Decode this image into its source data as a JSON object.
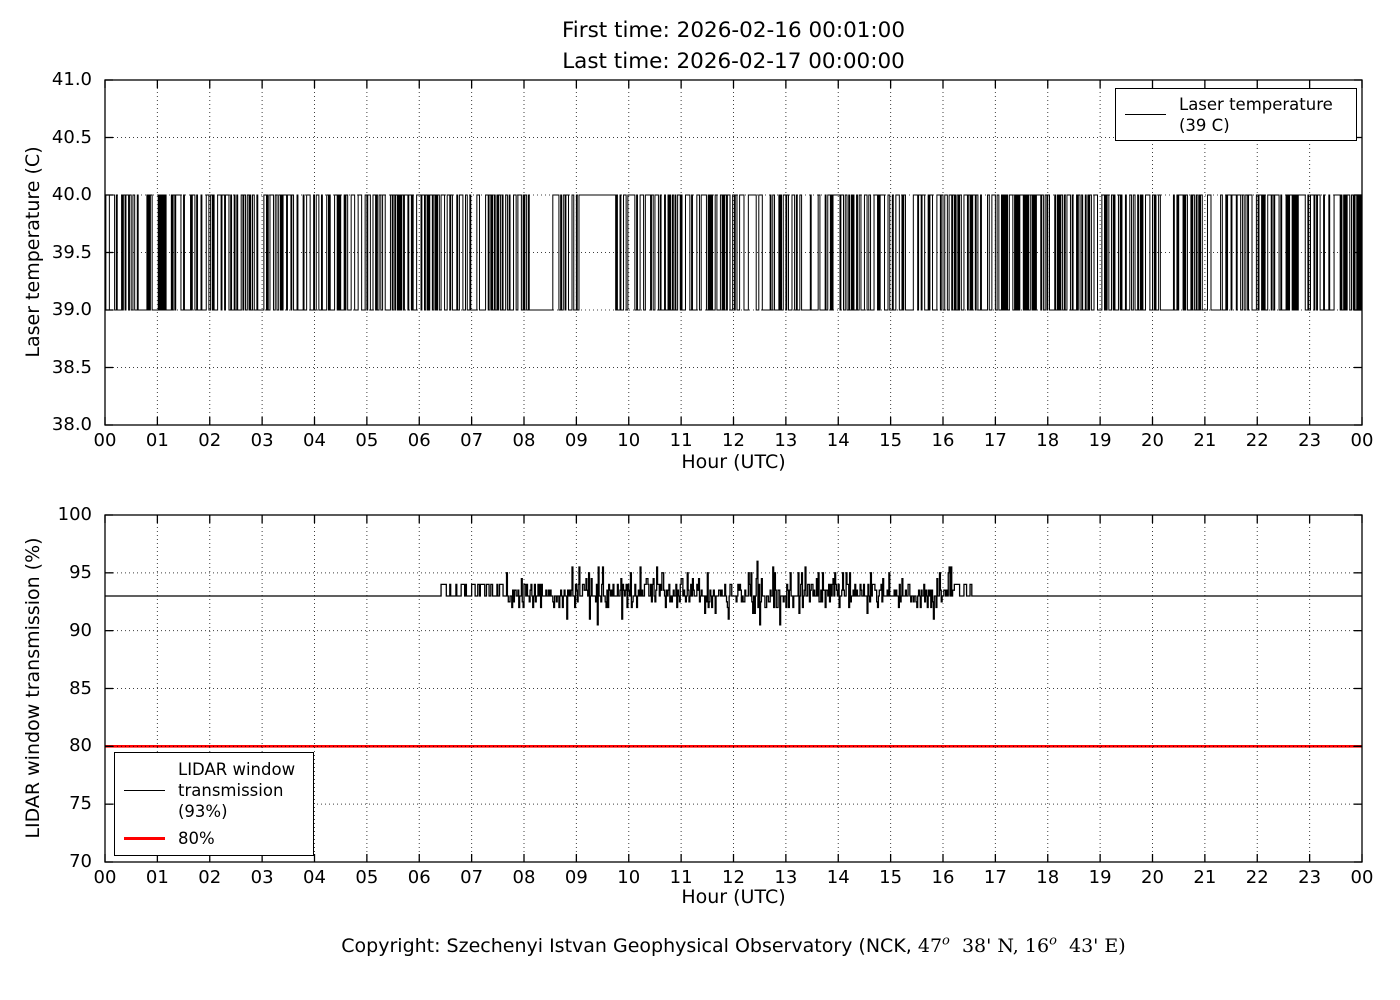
{
  "title": {
    "line1": "First time: 2026-02-16 00:01:00",
    "line2": "Last time: 2026-02-17 00:00:00"
  },
  "copyright": {
    "prefix": "Copyright: Szechenyi Istvan Geophysical Observatory (NCK, ",
    "lat_deg": "47",
    "deg_sup": "o",
    "lat_rest": "  38' N, ",
    "lon_deg": "16",
    "lon_rest": "  43' E)"
  },
  "colors": {
    "series": "#000000",
    "threshold": "#ff0000",
    "grid": "#000000",
    "background": "#ffffff"
  },
  "chart_data": [
    {
      "type": "line",
      "title": "",
      "xlabel": "Hour (UTC)",
      "ylabel": "Laser temperature (C)",
      "xlim": [
        0,
        24
      ],
      "ylim": [
        38.0,
        41.0
      ],
      "x_tick_labels": [
        "00",
        "01",
        "02",
        "03",
        "04",
        "05",
        "06",
        "07",
        "08",
        "09",
        "10",
        "11",
        "12",
        "13",
        "14",
        "15",
        "16",
        "17",
        "18",
        "19",
        "20",
        "21",
        "22",
        "23",
        "00"
      ],
      "y_ticks": [
        38.0,
        38.5,
        39.0,
        39.5,
        40.0,
        40.5,
        41.0
      ],
      "y_tick_labels": [
        "38.0",
        "38.5",
        "39.0",
        "39.5",
        "40.0",
        "40.5",
        "41.0"
      ],
      "grid": true,
      "legend": {
        "position": "upper right",
        "entries": [
          {
            "lines": [
              "Laser temperature",
              "(39 C)"
            ],
            "color": "#000000"
          }
        ]
      },
      "series": [
        {
          "name": "Laser temperature",
          "color": "#000000",
          "type": "square_wave",
          "low": 39.0,
          "high": 40.0,
          "sample_minutes": 1,
          "description": "Laser temperature toggles between 39 C and 40 C every few minutes across the whole day (00:00-24:00 UTC)",
          "quiet_segments": [
            {
              "start_h": 0.62,
              "end_h": 0.8,
              "value": 39.0
            },
            {
              "start_h": 8.1,
              "end_h": 8.55,
              "value": 39.0
            },
            {
              "start_h": 9.05,
              "end_h": 9.7,
              "value": 40.0
            }
          ]
        }
      ]
    },
    {
      "type": "line",
      "title": "",
      "xlabel": "Hour (UTC)",
      "ylabel": "LIDAR window transmission (%)",
      "xlim": [
        0,
        24
      ],
      "ylim": [
        70,
        100
      ],
      "x_tick_labels": [
        "00",
        "01",
        "02",
        "03",
        "04",
        "05",
        "06",
        "07",
        "08",
        "09",
        "10",
        "11",
        "12",
        "13",
        "14",
        "15",
        "16",
        "17",
        "18",
        "19",
        "20",
        "21",
        "22",
        "23",
        "00"
      ],
      "y_ticks": [
        70,
        75,
        80,
        85,
        90,
        95,
        100
      ],
      "y_tick_labels": [
        "70",
        "75",
        "80",
        "85",
        "90",
        "95",
        "100"
      ],
      "grid": true,
      "legend": {
        "position": "lower left",
        "entries": [
          {
            "lines": [
              "LIDAR window",
              "transmission",
              "(93%)"
            ],
            "color": "#000000"
          },
          {
            "lines": [
              "80%"
            ],
            "color": "#ff0000"
          }
        ]
      },
      "series": [
        {
          "name": "LIDAR window transmission",
          "color": "#000000",
          "type": "noisy_line",
          "base": 93,
          "noise_start_h": 6.3,
          "noise_end_h": 16.55,
          "small_noise_until_h": 7.65,
          "noise_min": 90.5,
          "noise_max": 96.2,
          "description": "Flat at 93% all day except noisy fluctuations between roughly 90.5% and 96% from about 06:20 to 16:30 UTC"
        },
        {
          "name": "80% threshold",
          "color": "#ff0000",
          "type": "hline",
          "value": 80
        }
      ]
    }
  ]
}
